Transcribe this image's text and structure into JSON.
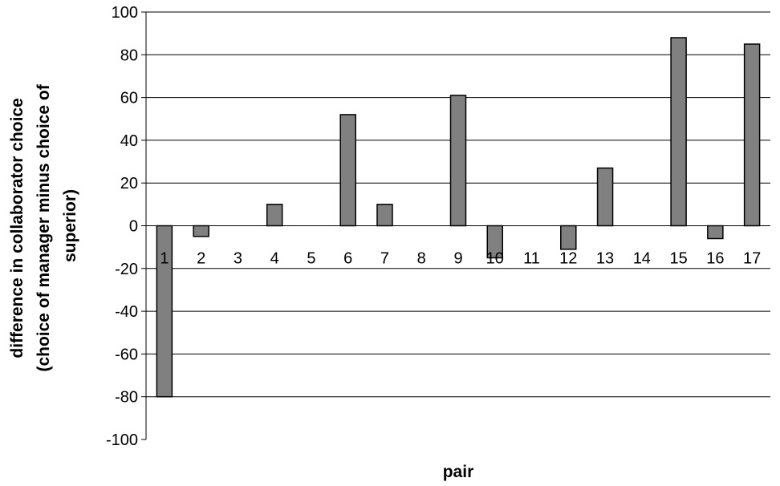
{
  "chart_data": {
    "type": "bar",
    "title": "",
    "xlabel": "pair",
    "ylabel_lines": [
      "difference in collaborator choice",
      "(choice of manager minus choice of",
      "superior)"
    ],
    "categories": [
      "1",
      "2",
      "3",
      "4",
      "5",
      "6",
      "7",
      "8",
      "9",
      "10",
      "11",
      "12",
      "13",
      "14",
      "15",
      "16",
      "17"
    ],
    "values": [
      -80,
      -5,
      0,
      10,
      0,
      52,
      10,
      0,
      61,
      -15,
      0,
      -11,
      27,
      0,
      88,
      -6,
      85
    ],
    "ylim": [
      -100,
      100
    ],
    "yticks": [
      100,
      80,
      60,
      40,
      20,
      0,
      -20,
      -40,
      -60,
      -80,
      -100
    ],
    "grid": true,
    "legend": "none",
    "bar_color": "#808080",
    "bar_edge_color": "#000000"
  }
}
